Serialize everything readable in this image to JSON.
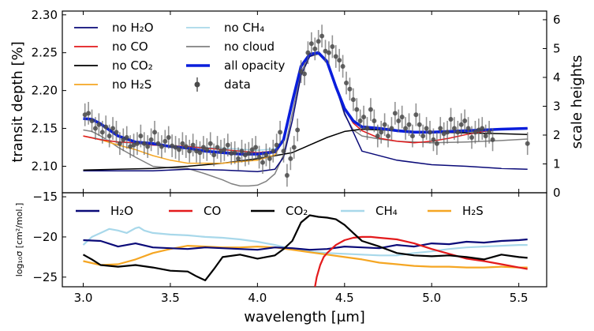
{
  "chart_data": [
    {
      "type": "line",
      "xlim": [
        2.88,
        5.66
      ],
      "ylim": [
        2.065,
        2.305
      ],
      "right_ylim": [
        0,
        6.3
      ],
      "ylabel": "transit depth [%]",
      "right_ylabel": "scale heights",
      "yticks": [
        "2.10",
        "2.15",
        "2.20",
        "2.25",
        "2.30"
      ],
      "right_yticks": [
        "0",
        "1",
        "2",
        "3",
        "4",
        "5",
        "6"
      ],
      "legend_placement": "top-left, two columns",
      "series": [
        {
          "name": "no H₂O",
          "color": "#0a0a78",
          "x": [
            3.0,
            3.2,
            3.4,
            3.6,
            3.8,
            4.0,
            4.1,
            4.15,
            4.2,
            4.25,
            4.3,
            4.35,
            4.4,
            4.45,
            4.5,
            4.6,
            4.8,
            5.0,
            5.2,
            5.4,
            5.55
          ],
          "y": [
            2.094,
            2.094,
            2.094,
            2.096,
            2.095,
            2.093,
            2.096,
            2.112,
            2.16,
            2.22,
            2.245,
            2.25,
            2.24,
            2.205,
            2.17,
            2.12,
            2.108,
            2.102,
            2.1,
            2.097,
            2.096
          ]
        },
        {
          "name": "no CO",
          "color": "#e31a1c",
          "x": [
            3.0,
            3.1,
            3.2,
            3.3,
            3.4,
            3.6,
            3.8,
            4.0,
            4.1,
            4.15,
            4.2,
            4.25,
            4.3,
            4.35,
            4.4,
            4.45,
            4.5,
            4.55,
            4.6,
            4.7,
            4.8,
            4.9,
            5.0,
            5.1,
            5.2,
            5.3,
            5.4,
            5.55
          ],
          "y": [
            2.14,
            2.135,
            2.132,
            2.131,
            2.128,
            2.126,
            2.122,
            2.118,
            2.12,
            2.135,
            2.185,
            2.232,
            2.248,
            2.25,
            2.238,
            2.205,
            2.176,
            2.157,
            2.147,
            2.137,
            2.133,
            2.131,
            2.133,
            2.137,
            2.142,
            2.146,
            2.149,
            2.15
          ]
        },
        {
          "name": "no CO₂",
          "color": "#000000",
          "x": [
            3.0,
            3.2,
            3.4,
            3.6,
            3.8,
            4.0,
            4.2,
            4.3,
            4.4,
            4.5,
            4.6,
            4.7,
            4.8,
            5.0,
            5.2,
            5.4,
            5.55
          ],
          "y": [
            2.095,
            2.096,
            2.097,
            2.1,
            2.104,
            2.11,
            2.118,
            2.128,
            2.138,
            2.146,
            2.149,
            2.148,
            2.147,
            2.145,
            2.144,
            2.143,
            2.142
          ]
        },
        {
          "name": "no H₂S",
          "color": "#f5a623",
          "x": [
            3.0,
            3.1,
            3.2,
            3.3,
            3.4,
            3.5,
            3.6,
            3.8,
            4.0,
            4.1,
            4.15,
            4.2,
            4.25,
            4.3,
            4.35,
            4.4,
            4.45,
            4.5,
            4.55,
            4.6,
            4.8,
            5.0,
            5.2,
            5.4,
            5.55
          ],
          "y": [
            2.14,
            2.135,
            2.128,
            2.122,
            2.114,
            2.108,
            2.104,
            2.104,
            2.108,
            2.115,
            2.135,
            2.185,
            2.232,
            2.248,
            2.25,
            2.238,
            2.205,
            2.176,
            2.16,
            2.152,
            2.146,
            2.145,
            2.147,
            2.149,
            2.15
          ]
        },
        {
          "name": "no CH₄",
          "color": "#a8d8ea",
          "x": [
            3.0,
            3.1,
            3.2,
            3.3,
            3.4,
            3.6,
            3.8,
            4.0,
            4.1,
            4.15,
            4.2,
            4.25,
            4.3,
            4.35,
            4.4,
            4.45,
            4.5,
            4.55,
            4.6,
            4.8,
            5.0,
            5.2,
            5.4,
            5.55
          ],
          "y": [
            2.14,
            2.136,
            2.132,
            2.13,
            2.128,
            2.126,
            2.124,
            2.121,
            2.123,
            2.136,
            2.185,
            2.232,
            2.248,
            2.25,
            2.238,
            2.205,
            2.176,
            2.16,
            2.152,
            2.146,
            2.145,
            2.147,
            2.149,
            2.15
          ]
        },
        {
          "name": "no cloud",
          "color": "#808080",
          "x": [
            3.0,
            3.05,
            3.1,
            3.15,
            3.2,
            3.3,
            3.4,
            3.5,
            3.6,
            3.7,
            3.8,
            3.85,
            3.9,
            3.95,
            4.0,
            4.05,
            4.1,
            4.15,
            4.2,
            4.25,
            4.3,
            4.35,
            4.4,
            4.45,
            4.5,
            4.55,
            4.6,
            4.7,
            4.8,
            5.0,
            5.2,
            5.4,
            5.55
          ],
          "y": [
            2.148,
            2.146,
            2.14,
            2.133,
            2.125,
            2.112,
            2.1,
            2.098,
            2.097,
            2.09,
            2.082,
            2.077,
            2.074,
            2.074,
            2.075,
            2.08,
            2.09,
            2.115,
            2.17,
            2.225,
            2.245,
            2.248,
            2.238,
            2.205,
            2.168,
            2.148,
            2.14,
            2.136,
            2.133,
            2.131,
            2.132,
            2.134,
            2.136
          ]
        },
        {
          "name": "all opacity",
          "color": "#0a1edc",
          "x": [
            3.0,
            3.05,
            3.1,
            3.15,
            3.2,
            3.3,
            3.4,
            3.5,
            3.6,
            3.7,
            3.8,
            3.9,
            4.0,
            4.1,
            4.15,
            4.2,
            4.25,
            4.3,
            4.35,
            4.4,
            4.45,
            4.5,
            4.55,
            4.6,
            4.7,
            4.8,
            4.9,
            5.0,
            5.1,
            5.2,
            5.3,
            5.4,
            5.55
          ],
          "y": [
            2.163,
            2.162,
            2.156,
            2.148,
            2.14,
            2.132,
            2.13,
            2.126,
            2.124,
            2.12,
            2.118,
            2.116,
            2.116,
            2.119,
            2.135,
            2.185,
            2.232,
            2.248,
            2.25,
            2.238,
            2.205,
            2.176,
            2.16,
            2.152,
            2.15,
            2.147,
            2.145,
            2.145,
            2.146,
            2.147,
            2.148,
            2.149,
            2.15
          ]
        }
      ],
      "data_points": {
        "name": "data",
        "color": "#4a4a4a",
        "x": [
          3.01,
          3.03,
          3.05,
          3.07,
          3.09,
          3.11,
          3.13,
          3.15,
          3.17,
          3.19,
          3.21,
          3.23,
          3.25,
          3.27,
          3.29,
          3.31,
          3.33,
          3.35,
          3.37,
          3.39,
          3.41,
          3.43,
          3.45,
          3.47,
          3.49,
          3.51,
          3.53,
          3.55,
          3.57,
          3.59,
          3.61,
          3.63,
          3.65,
          3.67,
          3.69,
          3.71,
          3.73,
          3.75,
          3.77,
          3.79,
          3.81,
          3.83,
          3.85,
          3.87,
          3.89,
          3.91,
          3.93,
          3.95,
          3.97,
          3.99,
          4.01,
          4.03,
          4.05,
          4.07,
          4.09,
          4.11,
          4.13,
          4.15,
          4.17,
          4.19,
          4.21,
          4.23,
          4.25,
          4.27,
          4.29,
          4.31,
          4.33,
          4.35,
          4.37,
          4.39,
          4.41,
          4.43,
          4.45,
          4.47,
          4.49,
          4.51,
          4.53,
          4.55,
          4.57,
          4.59,
          4.61,
          4.63,
          4.65,
          4.67,
          4.69,
          4.71,
          4.73,
          4.75,
          4.77,
          4.79,
          4.81,
          4.83,
          4.85,
          4.87,
          4.89,
          4.91,
          4.93,
          4.95,
          4.97,
          4.99,
          5.01,
          5.03,
          5.05,
          5.07,
          5.09,
          5.11,
          5.13,
          5.15,
          5.17,
          5.19,
          5.21,
          5.23,
          5.25,
          5.27,
          5.29,
          5.31,
          5.33,
          5.35,
          5.55
        ],
        "y": [
          2.168,
          2.17,
          2.16,
          2.15,
          2.155,
          2.145,
          2.152,
          2.14,
          2.15,
          2.145,
          2.13,
          2.135,
          2.138,
          2.126,
          2.128,
          2.13,
          2.14,
          2.13,
          2.126,
          2.135,
          2.145,
          2.13,
          2.126,
          2.133,
          2.138,
          2.127,
          2.125,
          2.122,
          2.13,
          2.126,
          2.12,
          2.128,
          2.12,
          2.118,
          2.125,
          2.122,
          2.13,
          2.115,
          2.125,
          2.12,
          2.122,
          2.128,
          2.117,
          2.118,
          2.11,
          2.12,
          2.115,
          2.117,
          2.122,
          2.125,
          2.112,
          2.105,
          2.115,
          2.11,
          2.12,
          2.128,
          2.145,
          2.12,
          2.088,
          2.11,
          2.125,
          2.148,
          2.225,
          2.222,
          2.25,
          2.262,
          2.255,
          2.265,
          2.272,
          2.252,
          2.25,
          2.258,
          2.245,
          2.24,
          2.232,
          2.21,
          2.202,
          2.188,
          2.175,
          2.16,
          2.165,
          2.15,
          2.175,
          2.16,
          2.14,
          2.145,
          2.155,
          2.14,
          2.15,
          2.17,
          2.16,
          2.165,
          2.15,
          2.155,
          2.14,
          2.168,
          2.155,
          2.14,
          2.15,
          2.145,
          2.135,
          2.13,
          2.15,
          2.143,
          2.145,
          2.162,
          2.15,
          2.145,
          2.155,
          2.16,
          2.15,
          2.138,
          2.145,
          2.148,
          2.15,
          2.14,
          2.145,
          2.135,
          2.13
        ],
        "yerr": 0.015
      }
    },
    {
      "type": "line",
      "xlabel": "wavelength [μm]",
      "ylabel": "log₁₀σ [cm²/mol.]",
      "xlim": [
        2.88,
        5.66
      ],
      "ylim": [
        -26.2,
        -14.5
      ],
      "xticks": [
        "3.0",
        "3.5",
        "4.0",
        "4.5",
        "5.0",
        "5.5"
      ],
      "yticks": [
        "−15",
        "−20",
        "−25"
      ],
      "legend_placement": "top, single row",
      "series": [
        {
          "name": "H₂O",
          "color": "#0a0a78",
          "x": [
            3.0,
            3.1,
            3.2,
            3.3,
            3.4,
            3.5,
            3.6,
            3.7,
            3.8,
            3.9,
            4.0,
            4.1,
            4.2,
            4.3,
            4.4,
            4.5,
            4.6,
            4.7,
            4.8,
            4.9,
            5.0,
            5.1,
            5.2,
            5.3,
            5.4,
            5.5,
            5.55
          ],
          "y": [
            -20.4,
            -20.5,
            -21.2,
            -20.8,
            -21.3,
            -21.4,
            -21.5,
            -21.3,
            -21.4,
            -21.5,
            -21.6,
            -21.3,
            -21.4,
            -21.6,
            -21.5,
            -21.2,
            -21.3,
            -21.4,
            -21.0,
            -21.2,
            -20.8,
            -20.9,
            -20.6,
            -20.7,
            -20.5,
            -20.4,
            -20.3
          ]
        },
        {
          "name": "CO",
          "color": "#e31a1c",
          "x": [
            4.33,
            4.34,
            4.36,
            4.38,
            4.4,
            4.42,
            4.45,
            4.5,
            4.55,
            4.6,
            4.65,
            4.7,
            4.8,
            4.9,
            5.0,
            5.1,
            5.2,
            5.3,
            5.4,
            5.5,
            5.55
          ],
          "y": [
            -26.2,
            -25.0,
            -23.5,
            -22.5,
            -22.0,
            -21.6,
            -21.0,
            -20.4,
            -20.1,
            -20.0,
            -20.0,
            -20.1,
            -20.3,
            -20.8,
            -21.5,
            -22.1,
            -22.7,
            -23.0,
            -23.4,
            -23.8,
            -24.0
          ]
        },
        {
          "name": "CO₂",
          "color": "#000000",
          "x": [
            3.0,
            3.05,
            3.1,
            3.2,
            3.3,
            3.4,
            3.5,
            3.6,
            3.65,
            3.7,
            3.75,
            3.8,
            3.9,
            4.0,
            4.1,
            4.15,
            4.2,
            4.25,
            4.3,
            4.35,
            4.4,
            4.45,
            4.5,
            4.55,
            4.6,
            4.7,
            4.8,
            4.9,
            5.0,
            5.1,
            5.2,
            5.3,
            5.4,
            5.5,
            5.55
          ],
          "y": [
            -22.2,
            -22.8,
            -23.5,
            -23.7,
            -23.5,
            -23.8,
            -24.2,
            -24.3,
            -24.9,
            -25.4,
            -24.0,
            -22.5,
            -22.2,
            -22.7,
            -22.3,
            -21.5,
            -20.5,
            -18.2,
            -17.3,
            -17.5,
            -17.6,
            -17.8,
            -18.5,
            -19.5,
            -20.5,
            -21.2,
            -22.0,
            -22.3,
            -22.4,
            -22.3,
            -22.5,
            -22.8,
            -22.2,
            -22.5,
            -22.6
          ]
        },
        {
          "name": "CH₄",
          "color": "#a8d8ea",
          "x": [
            3.0,
            3.05,
            3.1,
            3.15,
            3.2,
            3.25,
            3.3,
            3.32,
            3.35,
            3.4,
            3.45,
            3.5,
            3.6,
            3.7,
            3.8,
            3.9,
            4.0,
            4.1,
            4.2,
            4.3,
            4.4,
            4.5,
            4.6,
            4.7,
            4.8,
            4.9,
            5.0,
            5.1,
            5.2,
            5.3,
            5.4,
            5.5,
            5.55
          ],
          "y": [
            -21.0,
            -20.0,
            -19.5,
            -19.0,
            -19.2,
            -19.5,
            -18.9,
            -18.8,
            -19.2,
            -19.5,
            -19.6,
            -19.7,
            -19.8,
            -20.0,
            -20.1,
            -20.3,
            -20.6,
            -21.0,
            -21.5,
            -21.8,
            -22.0,
            -22.1,
            -22.2,
            -22.3,
            -22.3,
            -22.0,
            -21.8,
            -21.5,
            -21.3,
            -21.2,
            -21.1,
            -21.0,
            -21.0
          ]
        },
        {
          "name": "H₂S",
          "color": "#f5a623",
          "x": [
            3.0,
            3.1,
            3.2,
            3.3,
            3.4,
            3.5,
            3.6,
            3.7,
            3.8,
            3.9,
            4.0,
            4.1,
            4.2,
            4.3,
            4.4,
            4.5,
            4.6,
            4.7,
            4.8,
            4.9,
            5.0,
            5.1,
            5.2,
            5.3,
            5.4,
            5.5,
            5.55
          ],
          "y": [
            -23.0,
            -23.5,
            -23.4,
            -22.8,
            -22.0,
            -21.5,
            -21.1,
            -21.2,
            -21.3,
            -21.3,
            -21.2,
            -21.3,
            -21.6,
            -21.9,
            -22.2,
            -22.5,
            -22.8,
            -23.2,
            -23.4,
            -23.6,
            -23.7,
            -23.7,
            -23.8,
            -23.8,
            -23.7,
            -23.8,
            -23.8
          ]
        }
      ]
    }
  ]
}
